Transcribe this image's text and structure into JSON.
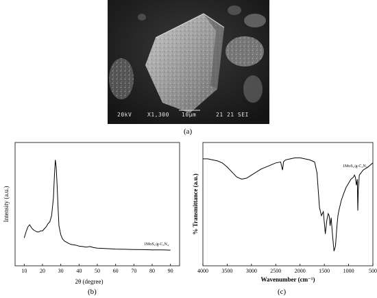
{
  "panels": {
    "a_label": "(a)",
    "b_label": "(b)",
    "c_label": "(c)"
  },
  "sem": {
    "voltage": "20kV",
    "magnification": "X1,300",
    "scale": "10μm",
    "code": "21 21 SEI"
  },
  "chart_data": [
    {
      "type": "line",
      "panel": "b",
      "xlabel": "2θ (degree)",
      "ylabel": "Intensity (a.u.)",
      "xlim": [
        5,
        95
      ],
      "xticks": [
        10,
        20,
        30,
        40,
        50,
        60,
        70,
        80,
        90
      ],
      "yticks": [],
      "annotation": "1MoS₂/g-C₃N₄",
      "series": [
        {
          "x": [
            10,
            11,
            12,
            13,
            14,
            15,
            16,
            17,
            18,
            19,
            20,
            21,
            22,
            23,
            24,
            25,
            26,
            26.5,
            27,
            27.5,
            28,
            28.5,
            29,
            30,
            31,
            32,
            33,
            34,
            35,
            36,
            38,
            40,
            42,
            44,
            46,
            48,
            50,
            55,
            60,
            65,
            70,
            75,
            80,
            85,
            90
          ],
          "y": [
            0.18,
            0.24,
            0.29,
            0.31,
            0.28,
            0.26,
            0.25,
            0.24,
            0.24,
            0.25,
            0.25,
            0.27,
            0.29,
            0.32,
            0.34,
            0.4,
            0.58,
            0.78,
            0.95,
            0.88,
            0.7,
            0.48,
            0.3,
            0.21,
            0.17,
            0.15,
            0.14,
            0.13,
            0.12,
            0.115,
            0.11,
            0.1,
            0.095,
            0.09,
            0.095,
            0.085,
            0.08,
            0.075,
            0.07,
            0.068,
            0.066,
            0.065,
            0.063,
            0.062,
            0.06
          ]
        }
      ]
    },
    {
      "type": "line",
      "panel": "c",
      "xlabel": "Wavenumber (cm⁻¹)",
      "ylabel": "% Transmittance (a.u.)",
      "xlim": [
        4000,
        500
      ],
      "xticks": [
        4000,
        3500,
        3000,
        2500,
        2000,
        1500,
        1000,
        500
      ],
      "yticks": [],
      "annotation": "1MoS₂/g-C₃N₄",
      "series": [
        {
          "x": [
            4000,
            3900,
            3800,
            3700,
            3600,
            3500,
            3400,
            3300,
            3200,
            3100,
            3000,
            2900,
            2800,
            2700,
            2600,
            2500,
            2400,
            2360,
            2340,
            2300,
            2200,
            2100,
            2000,
            1900,
            1800,
            1700,
            1650,
            1620,
            1600,
            1560,
            1520,
            1480,
            1450,
            1420,
            1400,
            1380,
            1360,
            1330,
            1300,
            1270,
            1240,
            1220,
            1200,
            1150,
            1100,
            1050,
            1000,
            950,
            900,
            880,
            860,
            840,
            820,
            810,
            800,
            780,
            700,
            600,
            500
          ],
          "y": [
            0.96,
            0.96,
            0.95,
            0.94,
            0.92,
            0.88,
            0.83,
            0.78,
            0.76,
            0.77,
            0.8,
            0.83,
            0.86,
            0.88,
            0.9,
            0.92,
            0.93,
            0.85,
            0.93,
            0.95,
            0.96,
            0.97,
            0.97,
            0.96,
            0.95,
            0.93,
            0.82,
            0.62,
            0.48,
            0.4,
            0.44,
            0.22,
            0.35,
            0.42,
            0.4,
            0.3,
            0.38,
            0.2,
            0.05,
            0.1,
            0.3,
            0.4,
            0.45,
            0.55,
            0.62,
            0.68,
            0.72,
            0.76,
            0.78,
            0.8,
            0.78,
            0.7,
            0.76,
            0.45,
            0.65,
            0.8,
            0.85,
            0.88,
            0.92
          ]
        }
      ]
    }
  ]
}
